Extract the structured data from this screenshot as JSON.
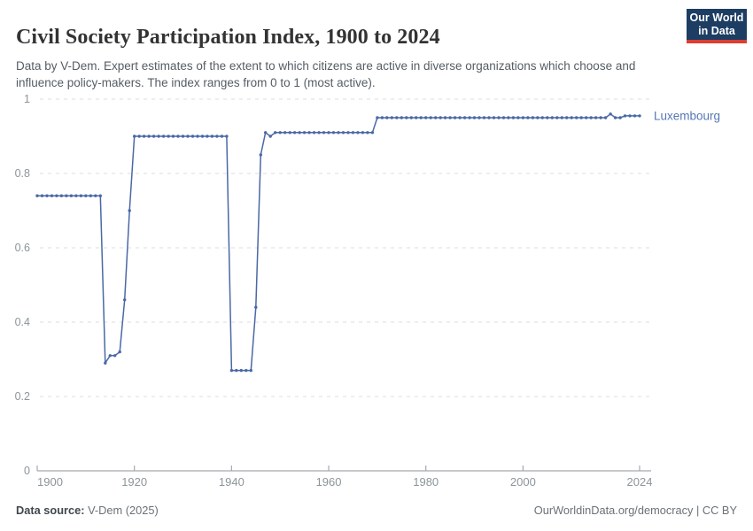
{
  "header": {
    "title": "Civil Society Participation Index, 1900 to 2024",
    "subtitle": "Data by V-Dem. Expert estimates of the extent to which citizens are active in diverse organizations which choose and influence policy-makers. The index ranges from 0 to 1 (most active).",
    "logo": {
      "line1": "Our World",
      "line2": "in Data"
    }
  },
  "footer": {
    "source_label": "Data source:",
    "source_value": "V-Dem (2025)",
    "credit": "OurWorldinData.org/democracy | CC BY"
  },
  "colors": {
    "line": "#4a68a5",
    "series_label": "#5577b3",
    "grid": "#dcdcdc",
    "axis": "#a5a9ad",
    "tick_label": "#8b959b",
    "logo_bg": "#1d3d63",
    "logo_accent": "#dc3e32"
  },
  "chart_data": {
    "type": "line",
    "title": "Civil Society Participation Index, 1900 to 2024",
    "entity": "Luxembourg",
    "x_start": 1900,
    "x_end": 2024,
    "x_ticks": [
      1900,
      1920,
      1940,
      1960,
      1980,
      2000,
      2024
    ],
    "y_ticks": [
      0,
      0.2,
      0.4,
      0.6,
      0.8,
      1
    ],
    "ylim": [
      0,
      1
    ],
    "grid": true,
    "legend_position": "right-of-line-end",
    "series": [
      {
        "name": "Luxembourg",
        "values": [
          0.74,
          0.74,
          0.74,
          0.74,
          0.74,
          0.74,
          0.74,
          0.74,
          0.74,
          0.74,
          0.74,
          0.74,
          0.74,
          0.74,
          0.29,
          0.31,
          0.31,
          0.32,
          0.46,
          0.7,
          0.9,
          0.9,
          0.9,
          0.9,
          0.9,
          0.9,
          0.9,
          0.9,
          0.9,
          0.9,
          0.9,
          0.9,
          0.9,
          0.9,
          0.9,
          0.9,
          0.9,
          0.9,
          0.9,
          0.9,
          0.27,
          0.27,
          0.27,
          0.27,
          0.27,
          0.44,
          0.85,
          0.91,
          0.9,
          0.91,
          0.91,
          0.91,
          0.91,
          0.91,
          0.91,
          0.91,
          0.91,
          0.91,
          0.91,
          0.91,
          0.91,
          0.91,
          0.91,
          0.91,
          0.91,
          0.91,
          0.91,
          0.91,
          0.91,
          0.91,
          0.95,
          0.95,
          0.95,
          0.95,
          0.95,
          0.95,
          0.95,
          0.95,
          0.95,
          0.95,
          0.95,
          0.95,
          0.95,
          0.95,
          0.95,
          0.95,
          0.95,
          0.95,
          0.95,
          0.95,
          0.95,
          0.95,
          0.95,
          0.95,
          0.95,
          0.95,
          0.95,
          0.95,
          0.95,
          0.95,
          0.95,
          0.95,
          0.95,
          0.95,
          0.95,
          0.95,
          0.95,
          0.95,
          0.95,
          0.95,
          0.95,
          0.95,
          0.95,
          0.95,
          0.95,
          0.95,
          0.95,
          0.95,
          0.96,
          0.95,
          0.95,
          0.955,
          0.955,
          0.955,
          0.955
        ]
      }
    ]
  }
}
